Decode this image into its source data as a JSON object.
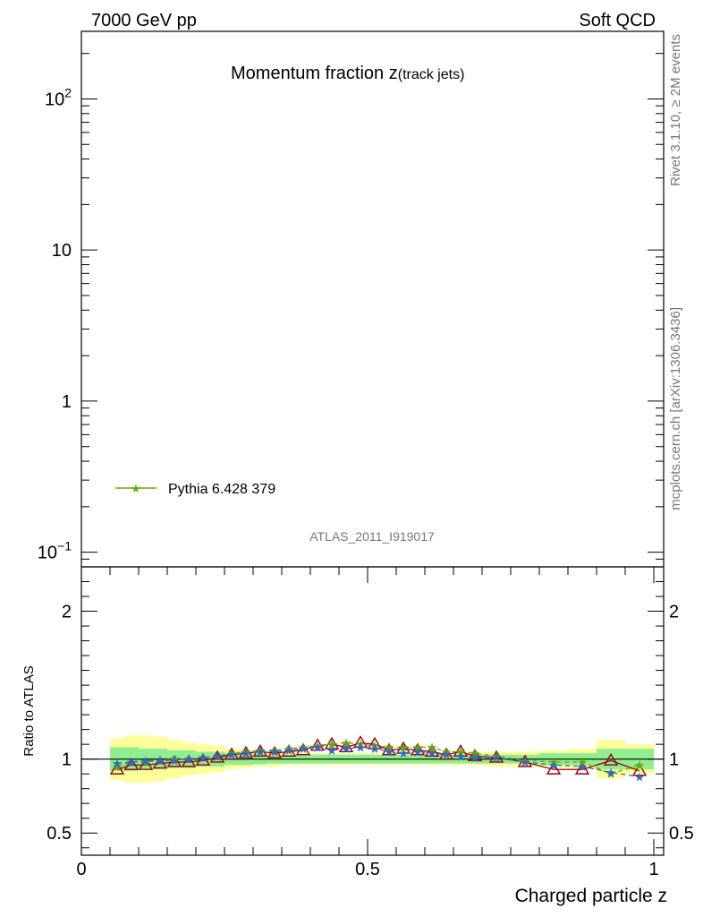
{
  "header": {
    "energy_label": "7000 GeV pp",
    "process_label": "Soft QCD"
  },
  "side_labels": {
    "rivet": "Rivet 3.1.10, ≥ 2M events",
    "source": "mcplots.cern.ch [arXiv:1306.3436]"
  },
  "chart_data": [
    {
      "type": "line",
      "panel": "main",
      "title": "Momentum fraction z",
      "title_suffix": "(track jets)",
      "analysis_label": "ATLAS_2011_I919017",
      "yscale": "log",
      "ylim": [
        0.08,
        280
      ],
      "y_ticks": [
        {
          "value": 0.1,
          "label": "10",
          "sup": "−1"
        },
        {
          "value": 1,
          "label": "1",
          "sup": ""
        },
        {
          "value": 10,
          "label": "10",
          "sup": ""
        },
        {
          "value": 100,
          "label": "10",
          "sup": "2"
        }
      ],
      "legend": {
        "position": "lower-left",
        "entries": [
          "Pythia 6.428 379"
        ]
      },
      "series_colors": {
        "Pythia 6.428 379": "#66aa00"
      }
    },
    {
      "type": "line",
      "panel": "ratio",
      "xlabel": "Charged particle z",
      "ylabel": "Ratio to ATLAS",
      "xlim": [
        0,
        1
      ],
      "ylim": [
        0.35,
        2.3
      ],
      "x_ticks": [
        {
          "value": 0,
          "label": "0"
        },
        {
          "value": 0.5,
          "label": "0.5"
        },
        {
          "value": 1,
          "label": "1"
        }
      ],
      "y_ticks": [
        {
          "value": 0.5,
          "label": "0.5"
        },
        {
          "value": 1,
          "label": "1"
        },
        {
          "value": 2,
          "label": "2"
        }
      ],
      "reference": 1,
      "x": [
        0.0625,
        0.0875,
        0.1125,
        0.1375,
        0.1625,
        0.1875,
        0.2125,
        0.2375,
        0.2625,
        0.2875,
        0.3125,
        0.3375,
        0.3625,
        0.3875,
        0.4125,
        0.4375,
        0.4625,
        0.4875,
        0.5125,
        0.5375,
        0.5625,
        0.5875,
        0.6125,
        0.6375,
        0.6625,
        0.6875,
        0.725,
        0.775,
        0.825,
        0.875,
        0.925,
        0.975
      ],
      "bands": {
        "inner": [
          0.08,
          0.08,
          0.07,
          0.07,
          0.06,
          0.06,
          0.05,
          0.05,
          0.04,
          0.04,
          0.035,
          0.03,
          0.03,
          0.03,
          0.03,
          0.03,
          0.03,
          0.03,
          0.03,
          0.03,
          0.03,
          0.03,
          0.03,
          0.03,
          0.03,
          0.03,
          0.03,
          0.03,
          0.04,
          0.04,
          0.07,
          0.07
        ],
        "outer": [
          0.14,
          0.16,
          0.16,
          0.15,
          0.13,
          0.11,
          0.1,
          0.09,
          0.07,
          0.06,
          0.05,
          0.05,
          0.04,
          0.04,
          0.04,
          0.04,
          0.04,
          0.04,
          0.04,
          0.04,
          0.04,
          0.04,
          0.04,
          0.04,
          0.04,
          0.04,
          0.05,
          0.05,
          0.06,
          0.07,
          0.13,
          0.1
        ],
        "colors": {
          "inner": "#90ee90",
          "outer": "#ffff99"
        }
      },
      "series": [
        {
          "color": "#990011",
          "marker": "triangle",
          "values": [
            0.93,
            0.96,
            0.96,
            0.97,
            0.98,
            0.98,
            0.99,
            1.01,
            1.03,
            1.04,
            1.05,
            1.04,
            1.05,
            1.06,
            1.09,
            1.1,
            1.08,
            1.11,
            1.1,
            1.06,
            1.07,
            1.06,
            1.05,
            1.03,
            1.05,
            1.02,
            1.01,
            0.98,
            0.93,
            0.93,
            0.99,
            0.92
          ]
        },
        {
          "name": "Pythia 6.428 379",
          "color": "#66aa00",
          "marker": "star",
          "values": [
            0.95,
            0.98,
            0.98,
            0.99,
            1.0,
            1.0,
            1.01,
            1.02,
            1.04,
            1.05,
            1.06,
            1.06,
            1.07,
            1.08,
            1.09,
            1.1,
            1.11,
            1.1,
            1.09,
            1.08,
            1.08,
            1.08,
            1.08,
            1.05,
            1.05,
            1.04,
            1.02,
            0.99,
            0.98,
            0.98,
            0.9,
            0.96
          ]
        },
        {
          "color": "#3366cc",
          "marker": "star",
          "values": [
            0.97,
            0.98,
            0.99,
            0.99,
            0.99,
            1.0,
            1.01,
            1.02,
            1.03,
            1.04,
            1.05,
            1.05,
            1.06,
            1.07,
            1.08,
            1.06,
            1.07,
            1.08,
            1.07,
            1.05,
            1.04,
            1.05,
            1.04,
            1.03,
            1.02,
            1.01,
            1.01,
            0.98,
            0.96,
            0.95,
            0.91,
            0.88
          ]
        }
      ]
    }
  ]
}
